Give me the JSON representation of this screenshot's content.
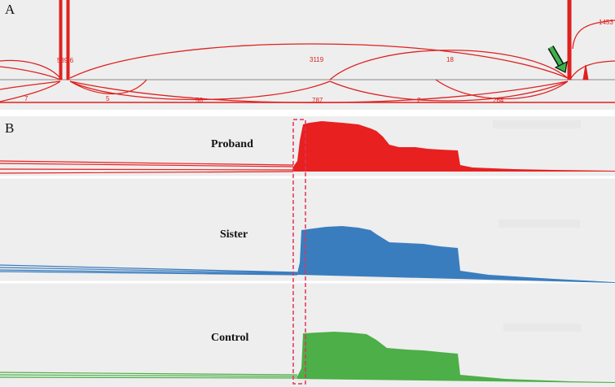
{
  "panel_a": {
    "letter": "A",
    "color": "#e02020",
    "junction_labels": [
      "539.6",
      "3119",
      "18",
      "1453",
      "7",
      "5",
      "56",
      "787",
      "2",
      "264"
    ]
  },
  "panel_b": {
    "letter": "B",
    "tracks": [
      {
        "label": "Proband",
        "color": "#e82020"
      },
      {
        "label": "Sister",
        "color": "#3a7dbf"
      },
      {
        "label": "Control",
        "color": "#4caf47"
      }
    ],
    "highlight_color": "#e0335a"
  },
  "arrow_color": "#3cb34a"
}
